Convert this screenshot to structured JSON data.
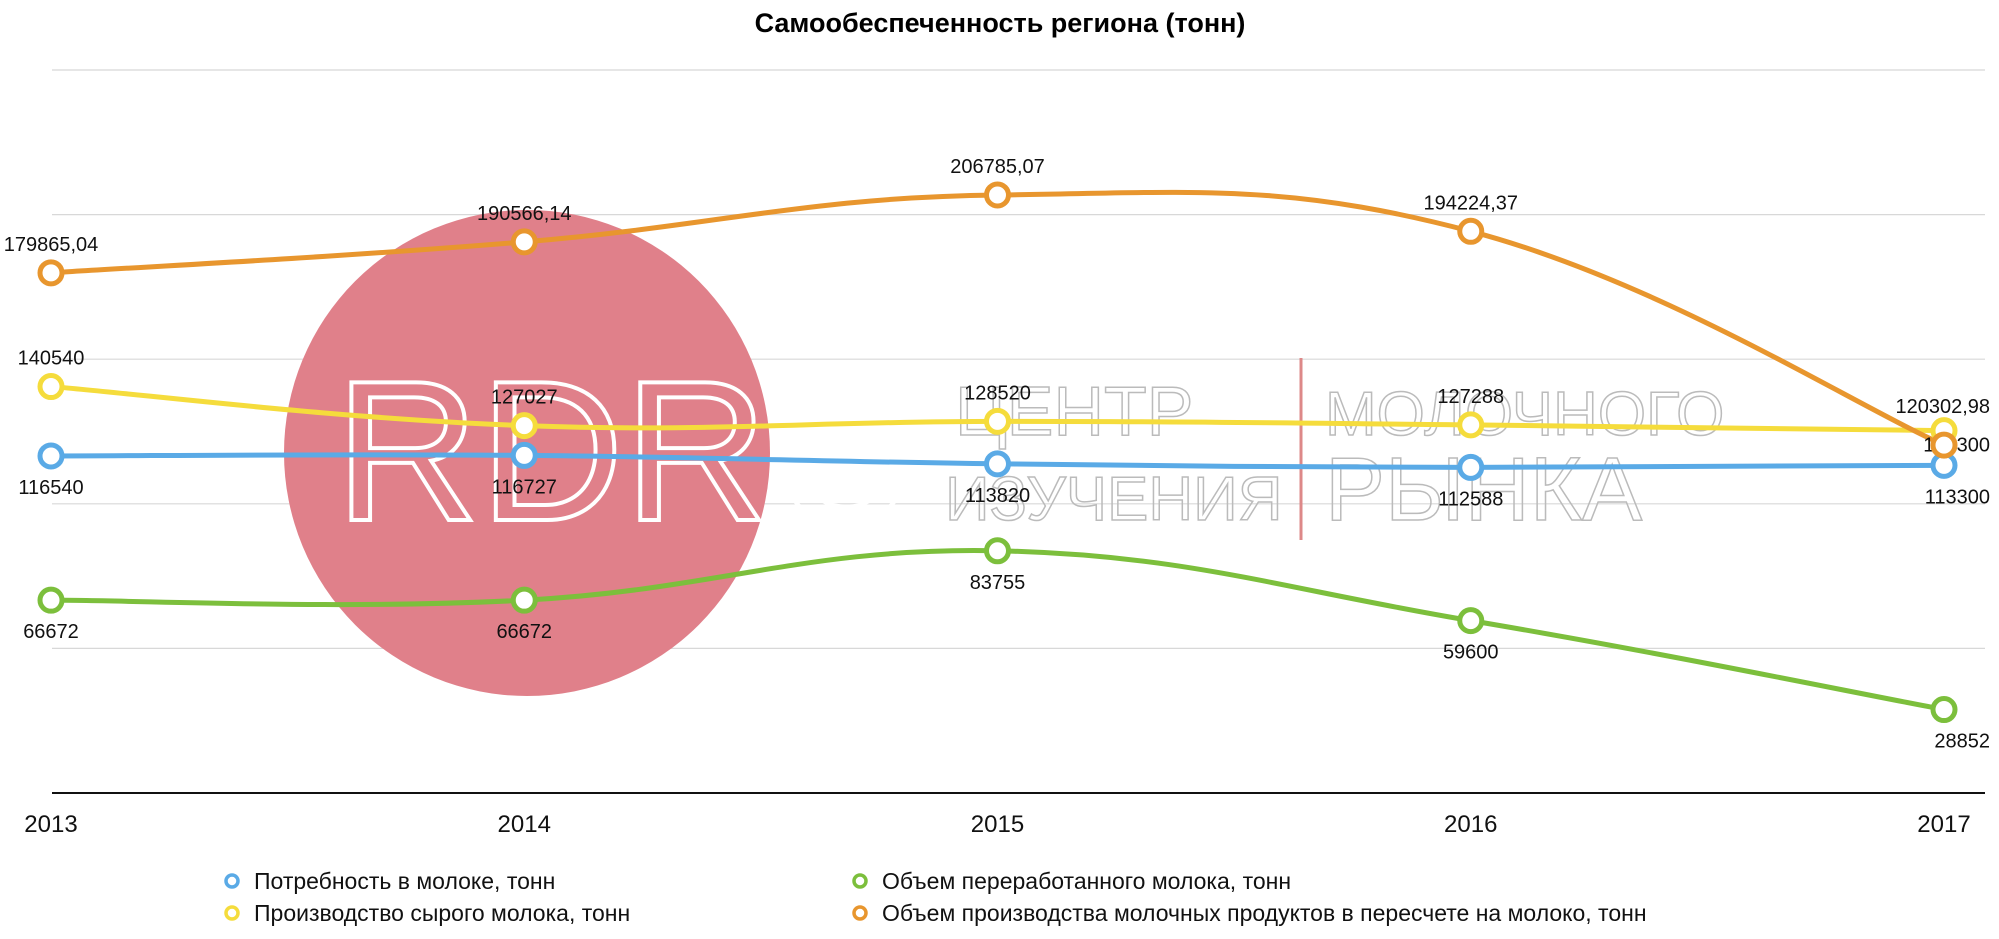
{
  "chart_data": {
    "type": "line",
    "title": "Самообеспеченность региона (тонн)",
    "xlabel": "",
    "ylabel": "",
    "ylim": [
      0,
      250000
    ],
    "grid": true,
    "legend_position": "bottom",
    "categories": [
      "2013",
      "2014",
      "2015",
      "2016",
      "2017"
    ],
    "series": [
      {
        "name": "Объем производства молочных продуктов в пересчете на молоко, тонн",
        "color": "#e8962e",
        "label_pos": "above",
        "values": [
          179865.04,
          190566.14,
          206785.07,
          194224.37,
          120302.98
        ],
        "labels": [
          "179865,04",
          "190566,14",
          "206785,07",
          "194224,37",
          "120302,98"
        ]
      },
      {
        "name": "Производство сырого молока, тонн",
        "color": "#f5dc3c",
        "label_pos": "above",
        "values": [
          140540,
          127027,
          128520,
          127288,
          125300
        ],
        "labels": [
          "140540",
          "127027",
          "128520",
          "127288",
          "125300"
        ]
      },
      {
        "name": "Потребность в молоке, тонн",
        "color": "#5aaae6",
        "label_pos": "below",
        "values": [
          116540,
          116727,
          113820,
          112588,
          113300
        ],
        "labels": [
          "116540",
          "116727",
          "113820",
          "112588",
          "113300"
        ]
      },
      {
        "name": "Объем переработанного молока, тонн",
        "color": "#7cbf3c",
        "label_pos": "below",
        "values": [
          66672,
          66672,
          83755,
          59600,
          28852
        ],
        "labels": [
          "66672",
          "66672",
          "83755",
          "59600",
          "28852"
        ]
      }
    ]
  },
  "watermark": {
    "logo": "RDRC",
    "line1": "ЦЕНТР",
    "line2": "ИЗУЧЕНИЯ",
    "line3": "МОЛОЧНОГО",
    "line4": "РЫНКА",
    "circle_color": "#e0808a"
  }
}
